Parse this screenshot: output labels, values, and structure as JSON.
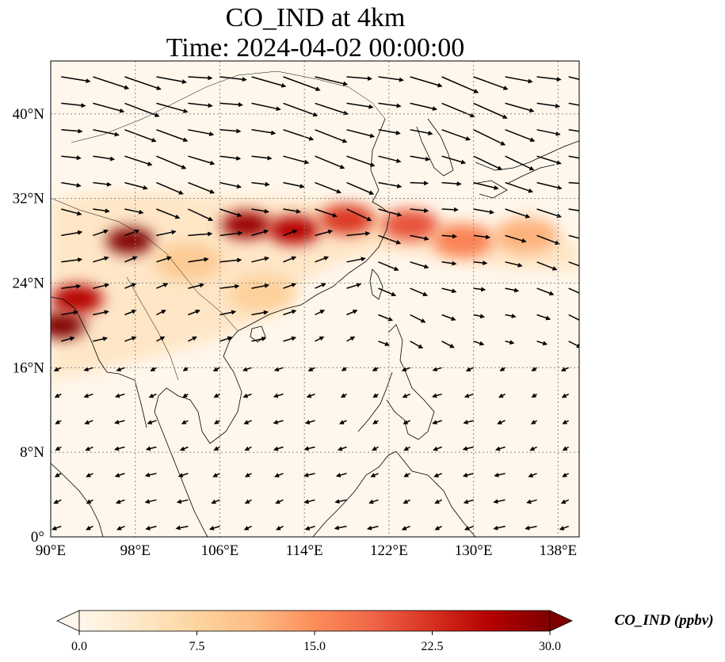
{
  "title": "CO_IND at 4km",
  "subtitle": "Time: 2024-04-02 00:00:00",
  "map": {
    "lon_range": [
      90,
      140
    ],
    "lat_range": [
      0,
      45
    ],
    "lon_ticks": [
      {
        "value": 90,
        "label": "90°E"
      },
      {
        "value": 98,
        "label": "98°E"
      },
      {
        "value": 106,
        "label": "106°E"
      },
      {
        "value": 114,
        "label": "114°E"
      },
      {
        "value": 122,
        "label": "122°E"
      },
      {
        "value": 130,
        "label": "130°E"
      },
      {
        "value": 138,
        "label": "138°E"
      }
    ],
    "lat_ticks": [
      {
        "value": 0,
        "label": "0°"
      },
      {
        "value": 8,
        "label": "8°N"
      },
      {
        "value": 16,
        "label": "16°N"
      },
      {
        "value": 24,
        "label": "24°N"
      },
      {
        "value": 32,
        "label": "32°N"
      },
      {
        "value": 40,
        "label": "40°N"
      }
    ],
    "gridlines": "dotted",
    "field": {
      "variable": "CO_IND",
      "units": "ppbv",
      "plumes": [
        {
          "lon": 97.5,
          "lat": 28.0,
          "value": 30
        },
        {
          "lon": 91.0,
          "lat": 20.0,
          "value": 30
        },
        {
          "lon": 92.5,
          "lat": 22.5,
          "value": 26
        },
        {
          "lon": 108.5,
          "lat": 29.5,
          "value": 28
        },
        {
          "lon": 113.0,
          "lat": 29.0,
          "value": 26
        },
        {
          "lon": 118.0,
          "lat": 30.0,
          "value": 22
        },
        {
          "lon": 124.0,
          "lat": 29.5,
          "value": 20
        },
        {
          "lon": 129.0,
          "lat": 28.0,
          "value": 16
        },
        {
          "lon": 135.0,
          "lat": 28.5,
          "value": 12
        },
        {
          "lon": 110.0,
          "lat": 23.0,
          "value": 8
        },
        {
          "lon": 103.0,
          "lat": 26.0,
          "value": 9
        }
      ]
    },
    "wind_vectors": "westerly flow north of ~18°N, weak northeasterly trades south of ~16°N"
  },
  "colorbar": {
    "cmap": "OrRd",
    "min": 0.0,
    "max": 30.0,
    "ticks": [
      "0.0",
      "7.5",
      "15.0",
      "22.5",
      "30.0"
    ],
    "label": "CO_IND (ppbv)",
    "extend": "both",
    "colors": [
      "#fff7ec",
      "#fee8c8",
      "#fdd49e",
      "#fdbb84",
      "#fc8d59",
      "#ef6548",
      "#d7301f",
      "#b30000",
      "#7f0000"
    ]
  }
}
